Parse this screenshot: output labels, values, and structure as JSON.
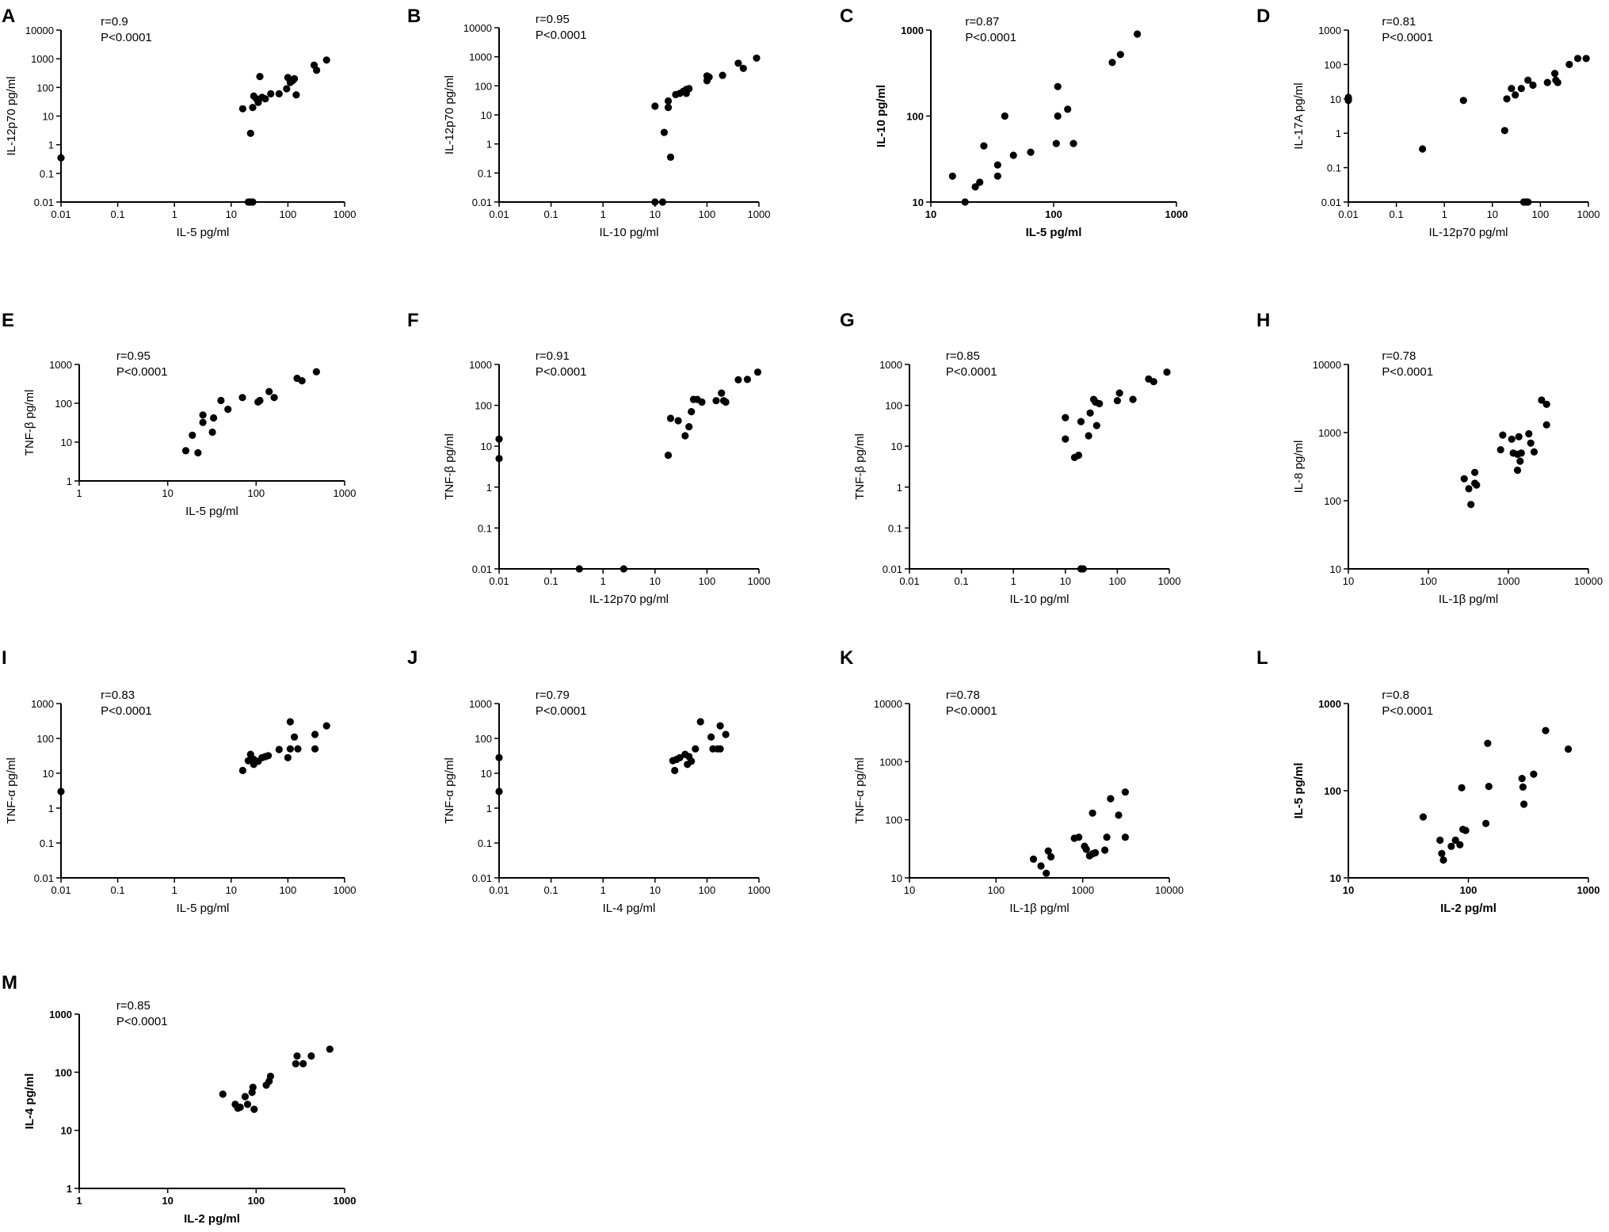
{
  "chart_data": [
    {
      "letter": "A",
      "type": "scatter",
      "xlabel": "IL-5 pg/ml",
      "ylabel": "IL-12p70 pg/ml",
      "bold": false,
      "xlim": [
        0.01,
        1000
      ],
      "ylim": [
        0.01,
        10000
      ],
      "xticks": [
        "0.01",
        "0.1",
        "1",
        "10",
        "100",
        "1000"
      ],
      "yticks": [
        "0.01",
        "0.1",
        "1",
        "10",
        "100",
        "1000",
        "10000"
      ],
      "stat_r": "r=0.9",
      "stat_p": "P<0.0001",
      "points": [
        [
          0.01,
          0.35
        ],
        [
          16,
          18
        ],
        [
          20,
          0.01
        ],
        [
          22,
          0.01
        ],
        [
          24,
          0.01
        ],
        [
          22,
          2.5
        ],
        [
          25,
          50
        ],
        [
          24,
          20
        ],
        [
          28,
          40
        ],
        [
          30,
          30
        ],
        [
          32,
          240
        ],
        [
          35,
          45
        ],
        [
          40,
          40
        ],
        [
          50,
          60
        ],
        [
          70,
          60
        ],
        [
          95,
          90
        ],
        [
          100,
          220
        ],
        [
          110,
          150
        ],
        [
          120,
          170
        ],
        [
          130,
          200
        ],
        [
          140,
          55
        ],
        [
          290,
          600
        ],
        [
          320,
          400
        ],
        [
          480,
          900
        ]
      ]
    },
    {
      "letter": "B",
      "type": "scatter",
      "xlabel": "IL-10 pg/ml",
      "ylabel": "IL-12p70 pg/ml",
      "bold": false,
      "xlim": [
        0.01,
        1000
      ],
      "ylim": [
        0.01,
        10000
      ],
      "xticks": [
        "0.01",
        "0.1",
        "1",
        "10",
        "100",
        "1000"
      ],
      "yticks": [
        "0.01",
        "0.1",
        "1",
        "10",
        "100",
        "1000",
        "10000"
      ],
      "stat_r": "r=0.95",
      "stat_p": "P<0.0001",
      "points": [
        [
          10,
          20
        ],
        [
          10,
          0.01
        ],
        [
          14,
          0.01
        ],
        [
          15,
          2.5
        ],
        [
          18,
          18
        ],
        [
          18,
          30
        ],
        [
          20,
          0.35
        ],
        [
          25,
          50
        ],
        [
          30,
          55
        ],
        [
          35,
          65
        ],
        [
          40,
          55
        ],
        [
          40,
          75
        ],
        [
          45,
          80
        ],
        [
          100,
          150
        ],
        [
          100,
          220
        ],
        [
          110,
          200
        ],
        [
          200,
          230
        ],
        [
          400,
          600
        ],
        [
          500,
          400
        ],
        [
          900,
          900
        ]
      ]
    },
    {
      "letter": "C",
      "type": "scatter",
      "xlabel": "IL-5 pg/ml",
      "ylabel": "IL-10 pg/ml",
      "bold": true,
      "xlim": [
        10,
        1000
      ],
      "ylim": [
        10,
        1000
      ],
      "xticks": [
        "10",
        "100",
        "1000"
      ],
      "yticks": [
        "10",
        "100",
        "1000"
      ],
      "stat_r": "r=0.87",
      "stat_p": "P<0.0001",
      "points": [
        [
          15,
          20
        ],
        [
          19,
          10
        ],
        [
          23,
          15
        ],
        [
          25,
          17
        ],
        [
          27,
          45
        ],
        [
          35,
          27
        ],
        [
          35,
          20
        ],
        [
          40,
          100
        ],
        [
          47,
          35
        ],
        [
          65,
          38
        ],
        [
          105,
          48
        ],
        [
          108,
          220
        ],
        [
          108,
          100
        ],
        [
          130,
          120
        ],
        [
          145,
          48
        ],
        [
          300,
          420
        ],
        [
          350,
          520
        ],
        [
          480,
          900
        ]
      ]
    },
    {
      "letter": "D",
      "type": "scatter",
      "xlabel": "IL-12p70 pg/ml",
      "ylabel": "IL-17A pg/ml",
      "bold": false,
      "xlim": [
        0.01,
        1000
      ],
      "ylim": [
        0.01,
        1000
      ],
      "xticks": [
        "0.01",
        "0.1",
        "1",
        "10",
        "100",
        "1000"
      ],
      "yticks": [
        "0.01",
        "0.1",
        "1",
        "10",
        "100",
        "1000"
      ],
      "stat_r": "r=0.81",
      "stat_p": "P<0.0001",
      "points": [
        [
          0.01,
          11
        ],
        [
          0.01,
          9
        ],
        [
          0.01,
          10
        ],
        [
          0.35,
          0.35
        ],
        [
          2.5,
          9
        ],
        [
          18,
          1.2
        ],
        [
          20,
          10
        ],
        [
          25,
          20
        ],
        [
          30,
          13
        ],
        [
          40,
          20
        ],
        [
          45,
          0.01
        ],
        [
          50,
          0.01
        ],
        [
          55,
          0.01
        ],
        [
          55,
          35
        ],
        [
          70,
          25
        ],
        [
          140,
          30
        ],
        [
          200,
          55
        ],
        [
          210,
          35
        ],
        [
          230,
          30
        ],
        [
          400,
          100
        ],
        [
          600,
          150
        ],
        [
          900,
          150
        ]
      ]
    },
    {
      "letter": "E",
      "type": "scatter",
      "xlabel": "IL-5 pg/ml",
      "ylabel": "TNF-β pg/ml",
      "bold": false,
      "xlim": [
        1,
        1000
      ],
      "ylim": [
        1,
        1000
      ],
      "xticks": [
        "1",
        "10",
        "100",
        "1000"
      ],
      "yticks": [
        "1",
        "10",
        "100",
        "1000"
      ],
      "stat_r": "r=0.95",
      "stat_p": "P<0.0001",
      "points": [
        [
          16,
          6
        ],
        [
          19,
          15
        ],
        [
          22,
          5.3
        ],
        [
          25,
          50
        ],
        [
          25,
          32
        ],
        [
          32,
          18
        ],
        [
          33,
          42
        ],
        [
          40,
          118
        ],
        [
          48,
          70
        ],
        [
          70,
          140
        ],
        [
          105,
          108
        ],
        [
          110,
          118
        ],
        [
          140,
          200
        ],
        [
          160,
          140
        ],
        [
          290,
          440
        ],
        [
          330,
          380
        ],
        [
          480,
          650
        ]
      ]
    },
    {
      "letter": "F",
      "type": "scatter",
      "xlabel": "IL-12p70 pg/ml",
      "ylabel": "TNF-β pg/ml",
      "bold": false,
      "xlim": [
        0.01,
        1000
      ],
      "ylim": [
        0.01,
        1000
      ],
      "xticks": [
        "0.01",
        "0.1",
        "1",
        "10",
        "100",
        "1000"
      ],
      "yticks": [
        "0.01",
        "0.1",
        "1",
        "10",
        "100",
        "1000"
      ],
      "stat_r": "r=0.91",
      "stat_p": "P<0.0001",
      "points": [
        [
          0.01,
          15
        ],
        [
          0.01,
          5
        ],
        [
          0.35,
          0.01
        ],
        [
          2.5,
          0.01
        ],
        [
          18,
          6
        ],
        [
          20,
          48
        ],
        [
          28,
          42
        ],
        [
          38,
          18
        ],
        [
          45,
          30
        ],
        [
          50,
          70
        ],
        [
          55,
          140
        ],
        [
          65,
          140
        ],
        [
          80,
          120
        ],
        [
          150,
          130
        ],
        [
          190,
          200
        ],
        [
          210,
          130
        ],
        [
          230,
          120
        ],
        [
          400,
          420
        ],
        [
          600,
          430
        ],
        [
          950,
          650
        ]
      ]
    },
    {
      "letter": "G",
      "type": "scatter",
      "xlabel": "IL-10 pg/ml",
      "ylabel": "TNF-β pg/ml",
      "bold": false,
      "xlim": [
        0.01,
        1000
      ],
      "ylim": [
        0.01,
        1000
      ],
      "xticks": [
        "0.01",
        "0.1",
        "1",
        "10",
        "100",
        "1000"
      ],
      "yticks": [
        "0.01",
        "0.1",
        "1",
        "10",
        "100",
        "1000"
      ],
      "stat_r": "r=0.85",
      "stat_p": "P<0.0001",
      "points": [
        [
          10,
          50
        ],
        [
          10,
          15
        ],
        [
          15,
          5.3
        ],
        [
          18,
          6
        ],
        [
          20,
          0.01
        ],
        [
          20,
          40
        ],
        [
          22,
          0.01
        ],
        [
          28,
          18
        ],
        [
          30,
          65
        ],
        [
          35,
          140
        ],
        [
          38,
          120
        ],
        [
          40,
          32
        ],
        [
          45,
          110
        ],
        [
          100,
          130
        ],
        [
          110,
          200
        ],
        [
          200,
          140
        ],
        [
          400,
          440
        ],
        [
          500,
          380
        ],
        [
          900,
          650
        ]
      ]
    },
    {
      "letter": "H",
      "type": "scatter",
      "xlabel": "IL-1β pg/ml",
      "ylabel": "IL-8 pg/ml",
      "bold": false,
      "xlim": [
        10,
        10000
      ],
      "ylim": [
        10,
        10000
      ],
      "xticks": [
        "10",
        "100",
        "1000",
        "10000"
      ],
      "yticks": [
        "10",
        "100",
        "1000",
        "10000"
      ],
      "stat_r": "r=0.78",
      "stat_p": "P<0.0001",
      "points": [
        [
          280,
          210
        ],
        [
          320,
          150
        ],
        [
          340,
          88
        ],
        [
          380,
          260
        ],
        [
          380,
          180
        ],
        [
          400,
          170
        ],
        [
          800,
          560
        ],
        [
          850,
          920
        ],
        [
          1100,
          800
        ],
        [
          1150,
          500
        ],
        [
          1300,
          280
        ],
        [
          1300,
          480
        ],
        [
          1350,
          870
        ],
        [
          1400,
          380
        ],
        [
          1450,
          500
        ],
        [
          1800,
          960
        ],
        [
          1900,
          700
        ],
        [
          2100,
          520
        ],
        [
          2600,
          3000
        ],
        [
          3000,
          2600
        ],
        [
          3000,
          1300
        ]
      ]
    },
    {
      "letter": "I",
      "type": "scatter",
      "xlabel": "IL-5 pg/ml",
      "ylabel": "TNF-α pg/ml",
      "bold": false,
      "xlim": [
        0.01,
        1000
      ],
      "ylim": [
        0.01,
        1000
      ],
      "xticks": [
        "0.01",
        "0.1",
        "1",
        "10",
        "100",
        "1000"
      ],
      "yticks": [
        "0.01",
        "0.1",
        "1",
        "10",
        "100",
        "1000"
      ],
      "stat_r": "r=0.83",
      "stat_p": "P<0.0001",
      "points": [
        [
          0.01,
          3
        ],
        [
          16,
          12
        ],
        [
          20,
          23
        ],
        [
          22,
          35
        ],
        [
          25,
          18
        ],
        [
          25,
          25
        ],
        [
          30,
          22
        ],
        [
          35,
          28
        ],
        [
          40,
          30
        ],
        [
          45,
          32
        ],
        [
          70,
          48
        ],
        [
          100,
          28
        ],
        [
          110,
          50
        ],
        [
          110,
          300
        ],
        [
          130,
          110
        ],
        [
          150,
          50
        ],
        [
          300,
          50
        ],
        [
          300,
          130
        ],
        [
          480,
          230
        ]
      ]
    },
    {
      "letter": "J",
      "type": "scatter",
      "xlabel": "IL-4 pg/ml",
      "ylabel": "TNF-α pg/ml",
      "bold": false,
      "xlim": [
        0.01,
        1000
      ],
      "ylim": [
        0.01,
        1000
      ],
      "xticks": [
        "0.01",
        "0.1",
        "1",
        "10",
        "100",
        "1000"
      ],
      "yticks": [
        "0.01",
        "0.1",
        "1",
        "10",
        "100",
        "1000"
      ],
      "stat_r": "r=0.79",
      "stat_p": "P<0.0001",
      "points": [
        [
          0.01,
          28
        ],
        [
          0.01,
          3
        ],
        [
          22,
          23
        ],
        [
          24,
          12
        ],
        [
          26,
          25
        ],
        [
          30,
          28
        ],
        [
          38,
          35
        ],
        [
          42,
          18
        ],
        [
          45,
          30
        ],
        [
          50,
          22
        ],
        [
          60,
          50
        ],
        [
          75,
          300
        ],
        [
          120,
          110
        ],
        [
          130,
          50
        ],
        [
          160,
          50
        ],
        [
          180,
          230
        ],
        [
          180,
          50
        ],
        [
          230,
          130
        ]
      ]
    },
    {
      "letter": "K",
      "type": "scatter",
      "xlabel": "IL-1β pg/ml",
      "ylabel": "TNF-α pg/ml",
      "bold": false,
      "xlim": [
        10,
        10000
      ],
      "ylim": [
        10,
        10000
      ],
      "xticks": [
        "10",
        "100",
        "1000",
        "10000"
      ],
      "yticks": [
        "10",
        "100",
        "1000",
        "10000"
      ],
      "stat_r": "r=0.78",
      "stat_p": "P<0.0001",
      "points": [
        [
          270,
          21
        ],
        [
          330,
          16
        ],
        [
          380,
          12
        ],
        [
          400,
          29
        ],
        [
          430,
          23
        ],
        [
          800,
          48
        ],
        [
          900,
          50
        ],
        [
          1050,
          35
        ],
        [
          1100,
          31
        ],
        [
          1200,
          24
        ],
        [
          1300,
          130
        ],
        [
          1300,
          26
        ],
        [
          1400,
          27
        ],
        [
          1800,
          30
        ],
        [
          1900,
          50
        ],
        [
          2100,
          230
        ],
        [
          2600,
          120
        ],
        [
          3100,
          300
        ],
        [
          3100,
          50
        ]
      ]
    },
    {
      "letter": "L",
      "type": "scatter",
      "xlabel": "IL-2 pg/ml",
      "ylabel": "IL-5 pg/ml",
      "bold": true,
      "xlim": [
        10,
        1000
      ],
      "ylim": [
        10,
        1000
      ],
      "xticks": [
        "10",
        "100",
        "1000"
      ],
      "yticks": [
        "10",
        "100",
        "1000"
      ],
      "stat_r": "r=0.8",
      "stat_p": "P<0.0001",
      "points": [
        [
          42,
          50
        ],
        [
          58,
          27
        ],
        [
          60,
          19
        ],
        [
          62,
          16
        ],
        [
          72,
          23
        ],
        [
          78,
          27
        ],
        [
          85,
          24
        ],
        [
          88,
          108
        ],
        [
          90,
          36
        ],
        [
          95,
          35
        ],
        [
          140,
          42
        ],
        [
          145,
          350
        ],
        [
          148,
          112
        ],
        [
          280,
          138
        ],
        [
          285,
          110
        ],
        [
          290,
          70
        ],
        [
          350,
          155
        ],
        [
          440,
          490
        ],
        [
          680,
          300
        ]
      ]
    },
    {
      "letter": "M",
      "type": "scatter",
      "xlabel": "IL-2 pg/ml",
      "ylabel": "IL-4 pg/ml",
      "bold": true,
      "xlim": [
        1,
        1000
      ],
      "ylim": [
        1,
        1000
      ],
      "xticks": [
        "1",
        "10",
        "100",
        "1000"
      ],
      "yticks": [
        "1",
        "10",
        "100",
        "1000"
      ],
      "stat_r": "r=0.85",
      "stat_p": "P<0.0001",
      "points": [
        [
          42,
          42
        ],
        [
          58,
          28
        ],
        [
          62,
          24
        ],
        [
          66,
          25
        ],
        [
          75,
          38
        ],
        [
          80,
          28
        ],
        [
          90,
          45
        ],
        [
          92,
          55
        ],
        [
          95,
          23
        ],
        [
          130,
          60
        ],
        [
          140,
          70
        ],
        [
          145,
          85
        ],
        [
          280,
          140
        ],
        [
          290,
          190
        ],
        [
          340,
          140
        ],
        [
          420,
          190
        ],
        [
          680,
          250
        ]
      ]
    }
  ]
}
